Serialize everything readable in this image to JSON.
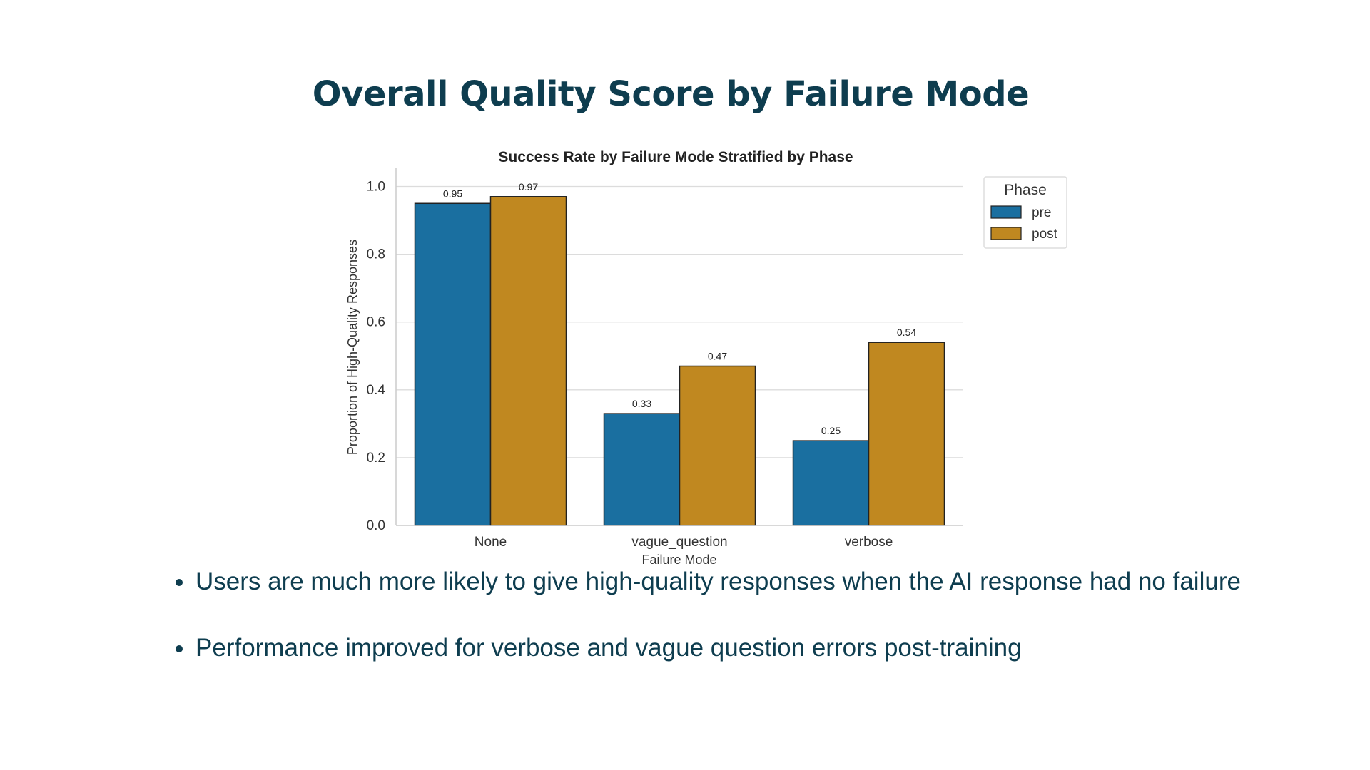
{
  "slide": {
    "title": "Overall Quality Score by Failure Mode"
  },
  "chart_data": {
    "type": "bar",
    "title": "Success Rate by Failure Mode Stratified by Phase",
    "xlabel": "Failure Mode",
    "ylabel": "Proportion of High-Quality Responses",
    "categories": [
      "None",
      "vague_question",
      "verbose"
    ],
    "series": [
      {
        "name": "pre",
        "values": [
          0.95,
          0.33,
          0.25
        ],
        "labels": [
          "0.95",
          "0.33",
          "0.25"
        ],
        "color": "#1a6fa0"
      },
      {
        "name": "post",
        "values": [
          0.97,
          0.47,
          0.54
        ],
        "labels": [
          "0.97",
          "0.47",
          "0.54"
        ],
        "color": "#c08820"
      }
    ],
    "ylim": [
      0,
      1.05
    ],
    "yticks": [
      0.0,
      0.2,
      0.4,
      0.6,
      0.8,
      1.0
    ],
    "ytick_labels": [
      "0.0",
      "0.2",
      "0.4",
      "0.6",
      "0.8",
      "1.0"
    ],
    "grid": true,
    "legend": {
      "title": "Phase",
      "placement": "outside-right"
    }
  },
  "bullets": [
    "Users are much more likely to give high-quality responses when the AI response had no failure",
    "Performance improved for verbose and vague question errors post-training"
  ]
}
